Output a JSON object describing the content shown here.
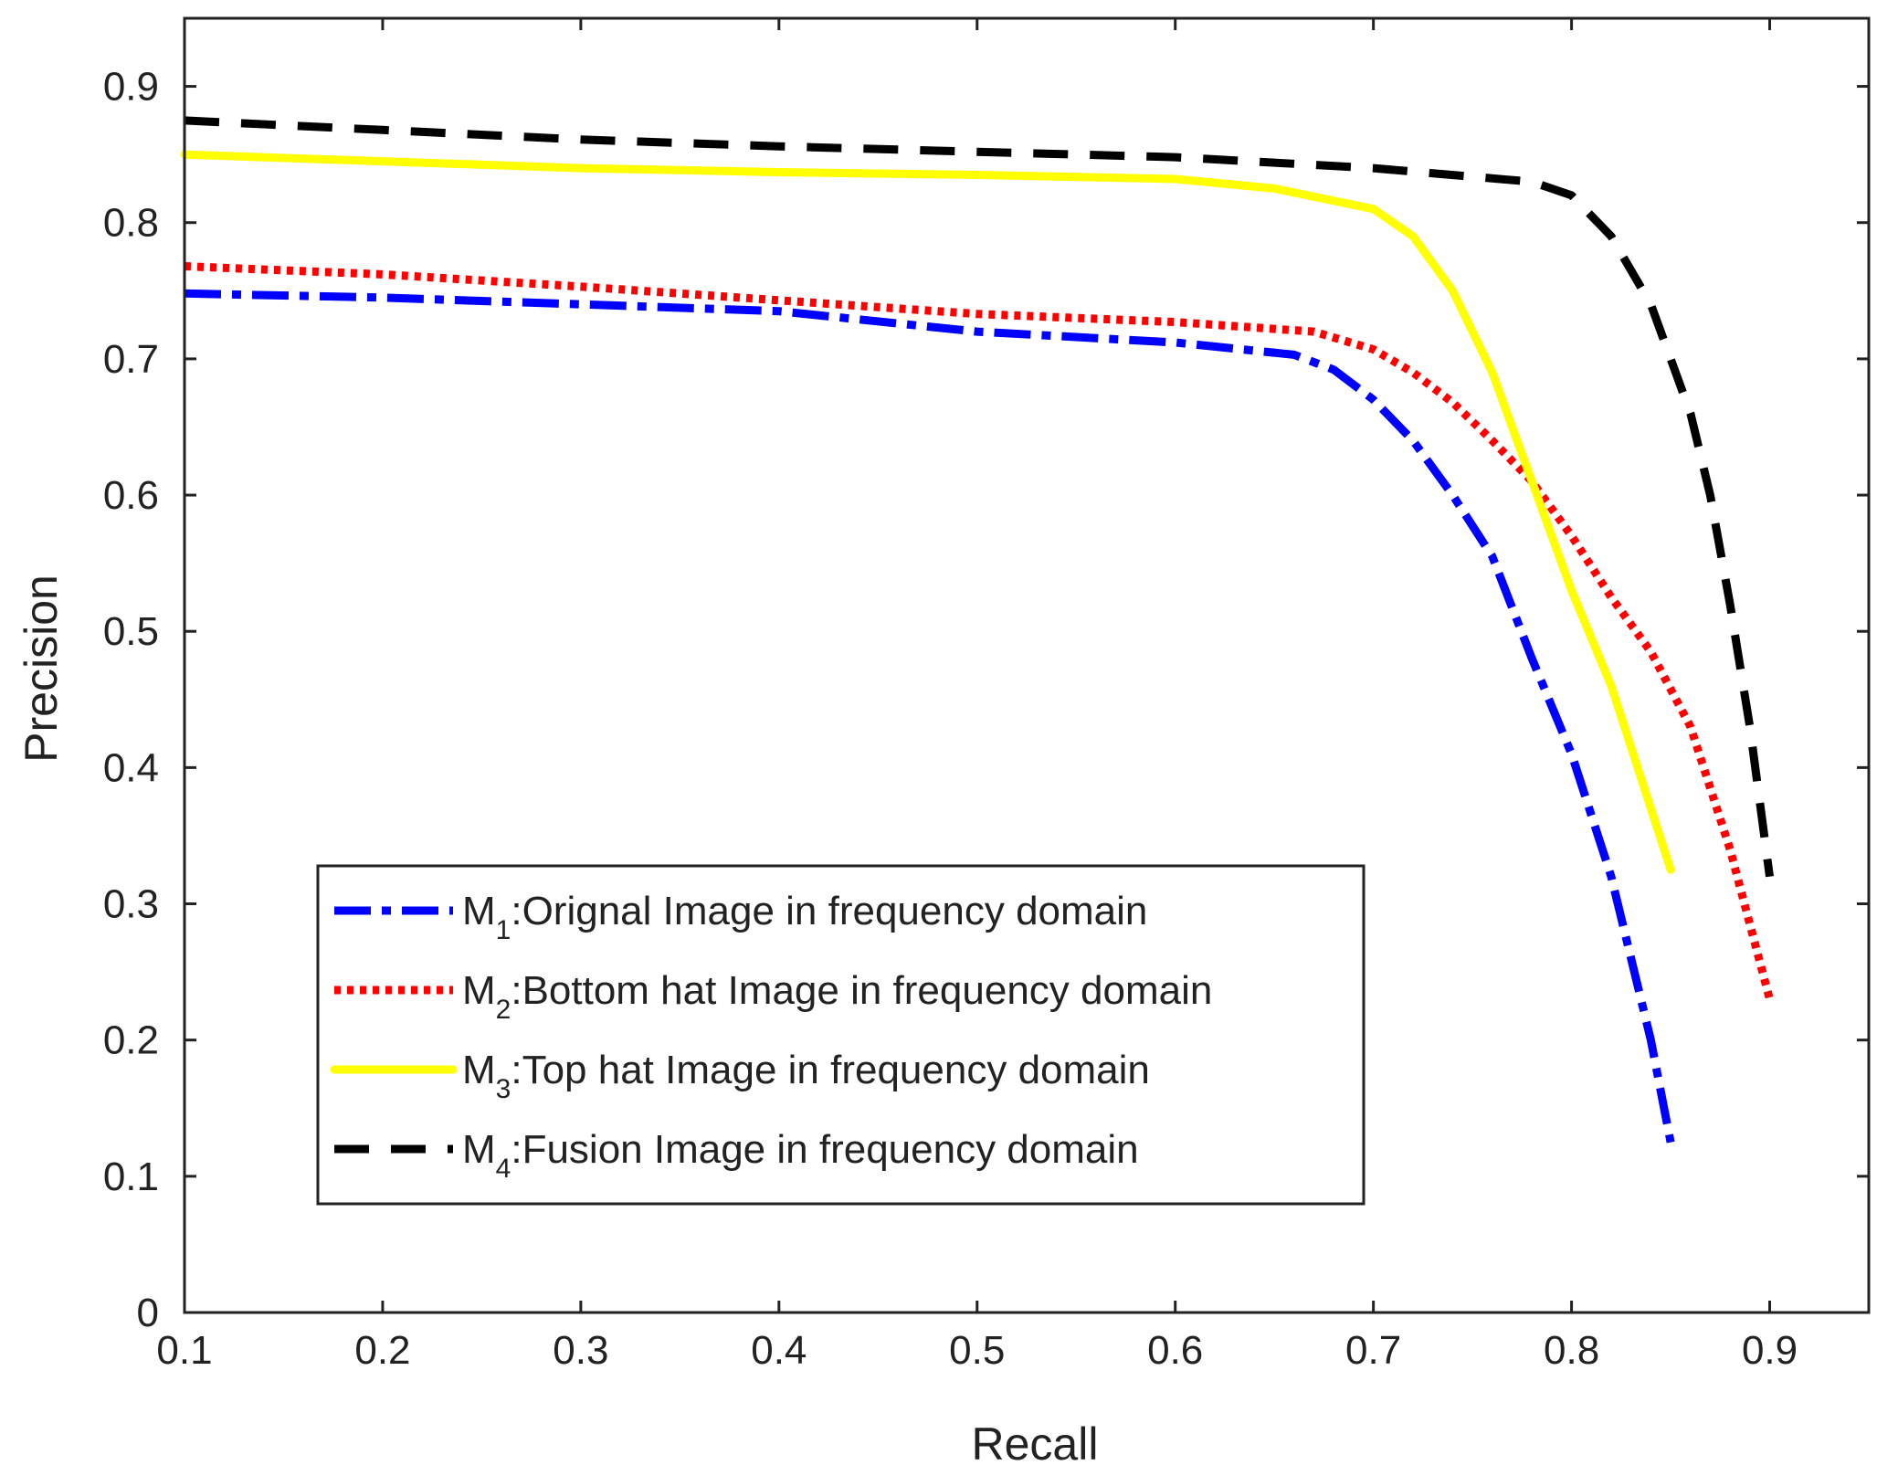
{
  "chart_data": {
    "type": "line",
    "title": "",
    "xlabel": "Recall",
    "ylabel": "Precision",
    "xlim": [
      0.1,
      0.95
    ],
    "ylim": [
      0,
      0.95
    ],
    "xticks": [
      0.1,
      0.2,
      0.3,
      0.4,
      0.5,
      0.6,
      0.7,
      0.8,
      0.9
    ],
    "xtick_labels": [
      "0.1",
      "0.2",
      "0.3",
      "0.4",
      "0.5",
      "0.6",
      "0.7",
      "0.8",
      "0.9"
    ],
    "yticks": [
      0,
      0.1,
      0.2,
      0.3,
      0.4,
      0.5,
      0.6,
      0.7,
      0.8,
      0.9
    ],
    "ytick_labels": [
      "0",
      "0.1",
      "0.2",
      "0.3",
      "0.4",
      "0.5",
      "0.6",
      "0.7",
      "0.8",
      "0.9"
    ],
    "grid": false,
    "legend_position": "lower-left",
    "series": [
      {
        "name": "M1:Orignal Image in frequency domain",
        "label_main": "M",
        "label_sub": "1",
        "label_rest": ":Orignal Image in frequency domain",
        "color": "#0000ff",
        "style": "dashdot",
        "x": [
          0.1,
          0.2,
          0.3,
          0.4,
          0.5,
          0.6,
          0.66,
          0.68,
          0.7,
          0.72,
          0.74,
          0.76,
          0.78,
          0.8,
          0.82,
          0.84,
          0.85
        ],
        "y": [
          0.748,
          0.745,
          0.74,
          0.735,
          0.72,
          0.712,
          0.703,
          0.692,
          0.67,
          0.64,
          0.6,
          0.555,
          0.48,
          0.41,
          0.32,
          0.2,
          0.125
        ]
      },
      {
        "name": "M2:Bottom hat Image in frequency domain",
        "label_main": "M",
        "label_sub": "2",
        "label_rest": ":Bottom hat Image in frequency domain",
        "color": "#ff0000",
        "style": "dotted",
        "x": [
          0.1,
          0.2,
          0.3,
          0.4,
          0.5,
          0.6,
          0.67,
          0.7,
          0.72,
          0.74,
          0.76,
          0.78,
          0.8,
          0.82,
          0.84,
          0.86,
          0.88,
          0.9
        ],
        "y": [
          0.768,
          0.762,
          0.753,
          0.743,
          0.733,
          0.727,
          0.72,
          0.707,
          0.69,
          0.668,
          0.64,
          0.61,
          0.57,
          0.525,
          0.485,
          0.43,
          0.34,
          0.23
        ]
      },
      {
        "name": "M3:Top hat Image in frequency domain",
        "label_main": "M",
        "label_sub": "3",
        "label_rest": ":Top hat Image in frequency domain",
        "color": "#ffff00",
        "style": "solid",
        "x": [
          0.1,
          0.2,
          0.3,
          0.4,
          0.5,
          0.6,
          0.65,
          0.7,
          0.72,
          0.74,
          0.76,
          0.78,
          0.8,
          0.82,
          0.85
        ],
        "y": [
          0.85,
          0.845,
          0.84,
          0.837,
          0.835,
          0.832,
          0.825,
          0.81,
          0.79,
          0.75,
          0.69,
          0.61,
          0.53,
          0.46,
          0.325
        ]
      },
      {
        "name": "M4:Fusion Image in frequency domain",
        "label_main": "M",
        "label_sub": "4",
        "label_rest": ":Fusion Image in frequency domain",
        "color": "#000000",
        "style": "dashed",
        "x": [
          0.1,
          0.2,
          0.3,
          0.4,
          0.5,
          0.6,
          0.7,
          0.78,
          0.8,
          0.82,
          0.84,
          0.86,
          0.87,
          0.88,
          0.89,
          0.9
        ],
        "y": [
          0.875,
          0.868,
          0.861,
          0.856,
          0.852,
          0.848,
          0.84,
          0.83,
          0.82,
          0.79,
          0.74,
          0.66,
          0.6,
          0.52,
          0.43,
          0.32
        ]
      }
    ]
  }
}
